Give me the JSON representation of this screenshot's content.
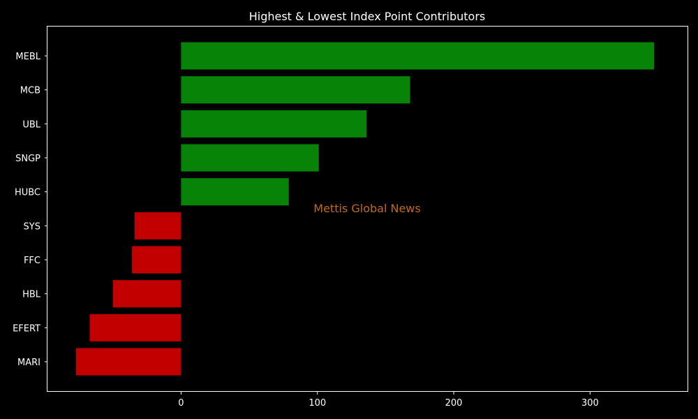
{
  "chart_data": {
    "type": "bar",
    "orientation": "horizontal",
    "title": "Highest & Lowest Index Point Contributors",
    "xlabel": "",
    "ylabel": "",
    "categories": [
      "MEBL",
      "MCB",
      "UBL",
      "SNGP",
      "HUBC",
      "SYS",
      "FFC",
      "HBL",
      "EFERT",
      "MARI"
    ],
    "values": [
      347,
      168,
      136,
      101,
      79,
      -34,
      -36,
      -50,
      -67,
      -77
    ],
    "xlim": [
      -98,
      372
    ],
    "xticks": [
      0,
      100,
      200,
      300
    ],
    "grid": false,
    "background_color": "#000000",
    "positive_color": "#078407",
    "negative_color": "#c20000",
    "text_color": "#ffffff"
  },
  "watermark": {
    "text": "Mettis Global News",
    "color": "#c26a1c"
  }
}
